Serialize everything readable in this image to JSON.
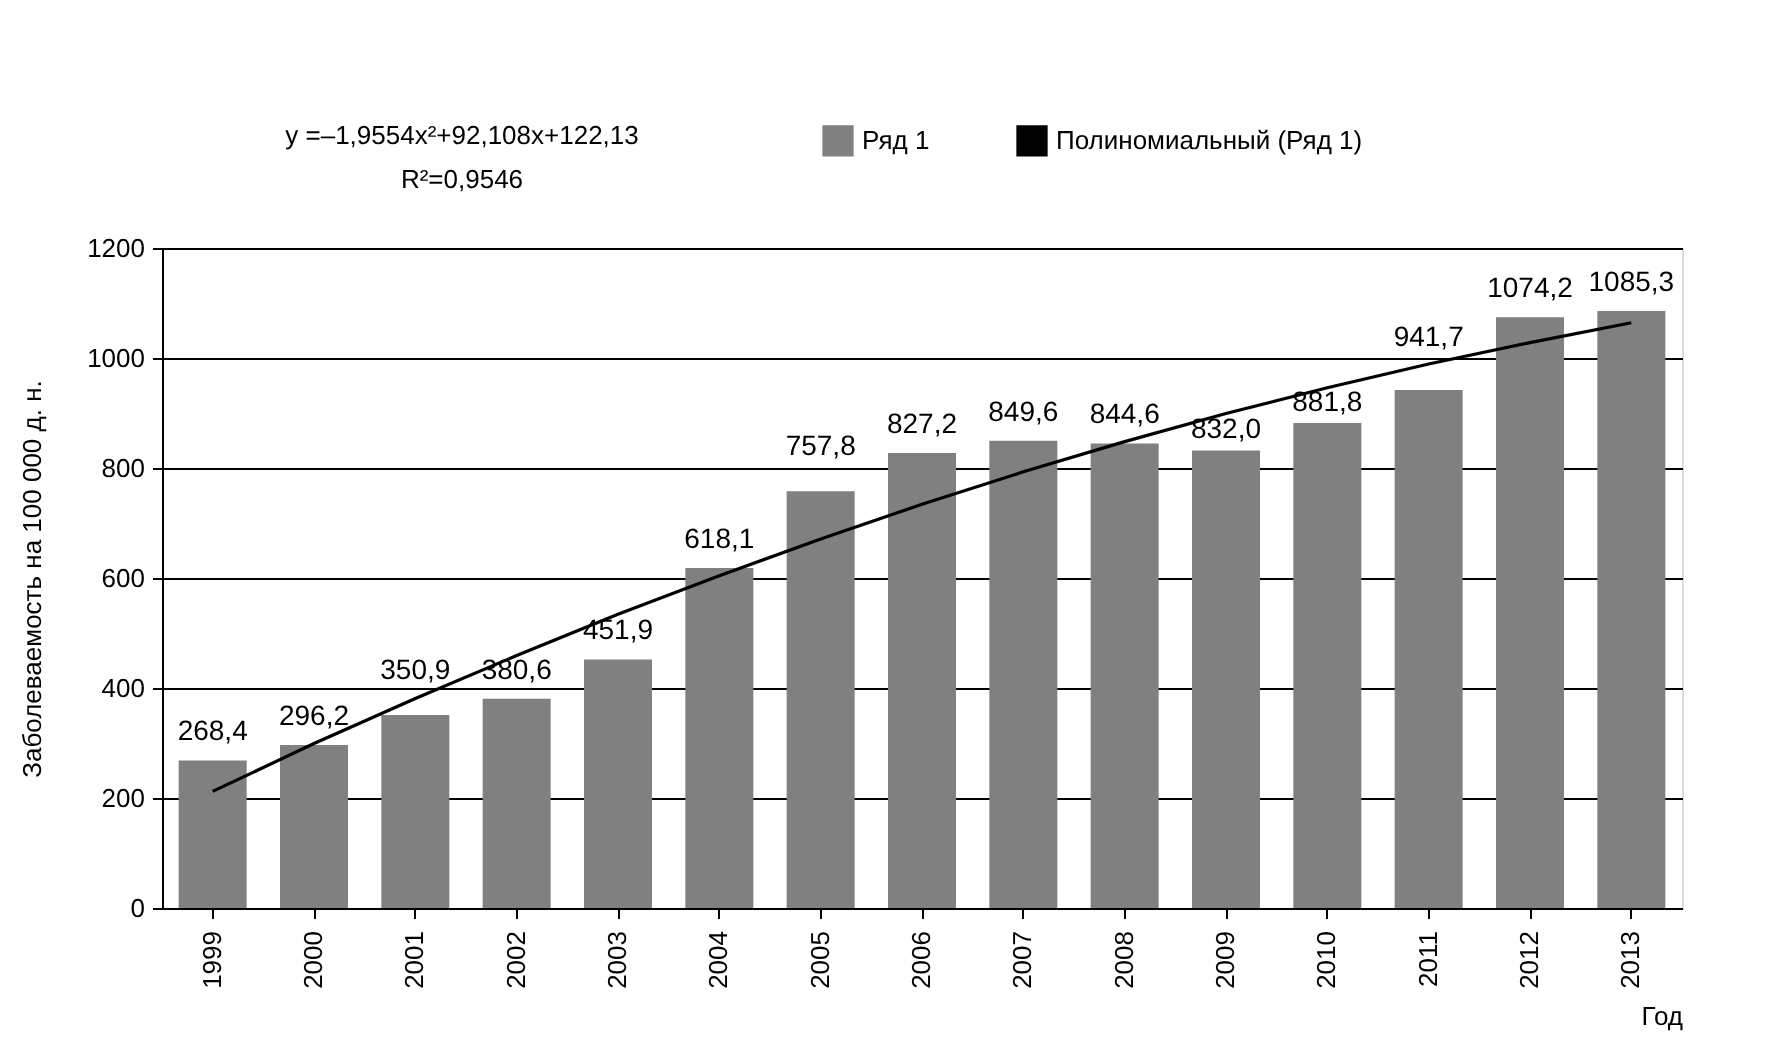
{
  "chart_data": {
    "type": "bar",
    "categories": [
      "1999",
      "2000",
      "2001",
      "2002",
      "2003",
      "2004",
      "2005",
      "2006",
      "2007",
      "2008",
      "2009",
      "2010",
      "2011",
      "2012",
      "2013"
    ],
    "series": [
      {
        "name": "Ряд 1",
        "color": "#808080",
        "values": [
          268.4,
          296.2,
          350.9,
          380.6,
          451.9,
          618.1,
          757.8,
          827.2,
          849.6,
          844.6,
          832.0,
          881.8,
          941.7,
          1074.2,
          1085.3
        ],
        "value_labels": [
          "268,4",
          "296,2",
          "350,9",
          "380,6",
          "451,9",
          "618,1",
          "757,8",
          "827,2",
          "849,6",
          "844,6",
          "832,0",
          "881,8",
          "941,7",
          "1074,2",
          "1085,3"
        ]
      },
      {
        "name": "Полиномиальный (Ряд 1)",
        "type": "line",
        "color": "#000000",
        "values": [
          212,
          299,
          381,
          459,
          534,
          604,
          671,
          734,
          793,
          848,
          899,
          946,
          989,
          1028,
          1064
        ]
      }
    ],
    "xlabel": "Год",
    "ylabel": "Заболеваемость на 100 000 д. н.",
    "ylim": [
      0,
      1200
    ],
    "yticks": [
      0,
      200,
      400,
      600,
      800,
      1000,
      1200
    ],
    "grid": "y",
    "legend": "top",
    "annotations": [
      "y =–1,9554x²+92,108x+122,13",
      "R²=0,9546"
    ]
  }
}
